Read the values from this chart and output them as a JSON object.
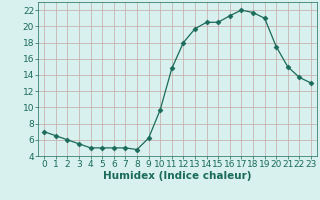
{
  "x": [
    0,
    1,
    2,
    3,
    4,
    5,
    6,
    7,
    8,
    9,
    10,
    11,
    12,
    13,
    14,
    15,
    16,
    17,
    18,
    19,
    20,
    21,
    22,
    23
  ],
  "y": [
    7.0,
    6.5,
    6.0,
    5.5,
    5.0,
    5.0,
    5.0,
    5.0,
    4.8,
    6.2,
    9.7,
    14.8,
    18.0,
    19.7,
    20.5,
    20.5,
    21.3,
    22.0,
    21.7,
    21.0,
    17.5,
    15.0,
    13.7,
    13.0
  ],
  "line_color": "#1a6b5a",
  "marker": "D",
  "marker_size": 2.5,
  "bg_color": "#d8f0ee",
  "grid_color": "#c8a8a8",
  "xlabel": "Humidex (Indice chaleur)",
  "xlim": [
    -0.5,
    23.5
  ],
  "ylim": [
    4,
    23
  ],
  "yticks": [
    4,
    6,
    8,
    10,
    12,
    14,
    16,
    18,
    20,
    22
  ],
  "xticks": [
    0,
    1,
    2,
    3,
    4,
    5,
    6,
    7,
    8,
    9,
    10,
    11,
    12,
    13,
    14,
    15,
    16,
    17,
    18,
    19,
    20,
    21,
    22,
    23
  ],
  "xlabel_fontsize": 7.5,
  "tick_fontsize": 6.5,
  "label_color": "#1a6b5a"
}
